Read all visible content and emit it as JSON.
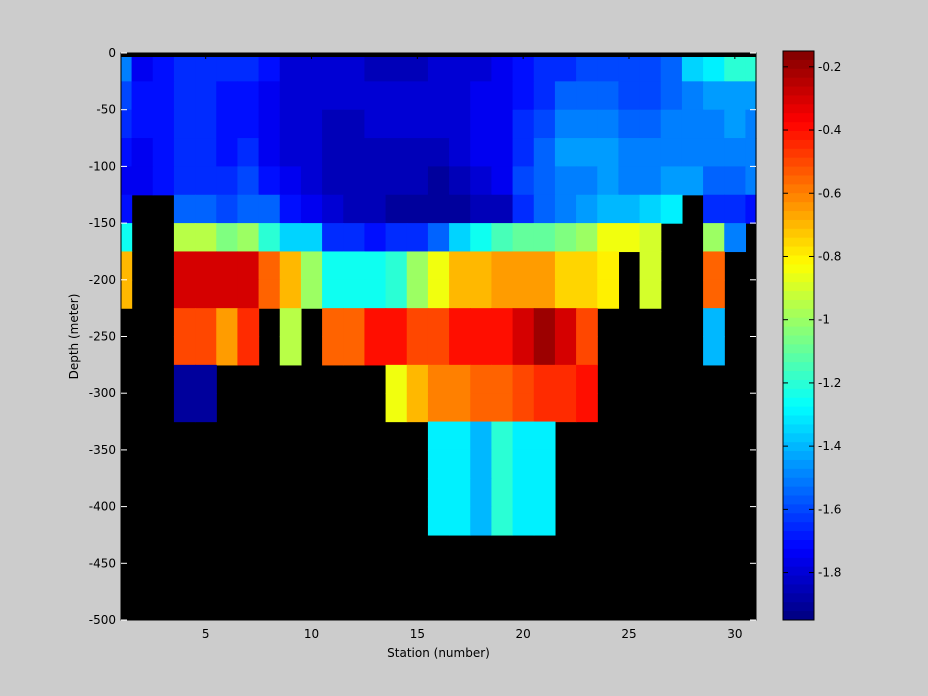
{
  "chart_data": {
    "type": "heatmap",
    "xlabel": "Station (number)",
    "ylabel": "Depth (meter)",
    "xlim": [
      1,
      31
    ],
    "ylim": [
      -500,
      0
    ],
    "xticks": [
      5,
      10,
      15,
      20,
      25,
      30
    ],
    "yticks": [
      0,
      -50,
      -100,
      -150,
      -200,
      -250,
      -300,
      -350,
      -400,
      -450,
      -500
    ],
    "colorbar": {
      "colormap": "jet",
      "clim": [
        -1.95,
        -0.15
      ],
      "ticks": [
        -0.2,
        -0.4,
        -0.6,
        -0.8,
        -1,
        -1.2,
        -1.4,
        -1.6,
        -1.8
      ]
    },
    "nan_color": "#000000",
    "background": "#cccccc",
    "depth_rows": [
      0,
      -25,
      -50,
      -75,
      -100,
      -125,
      -150,
      -175,
      -200,
      -225,
      -250,
      -275,
      -300,
      -325,
      -350,
      -375,
      -400
    ],
    "stations": [
      1,
      2,
      3,
      4,
      5,
      6,
      7,
      8,
      9,
      10,
      11,
      12,
      13,
      14,
      15,
      16,
      17,
      18,
      19,
      20,
      21,
      22,
      23,
      24,
      25,
      26,
      27,
      28,
      29,
      30,
      31
    ],
    "values": [
      [
        -1.5,
        -1.75,
        -1.7,
        -1.65,
        -1.65,
        -1.65,
        -1.65,
        -1.7,
        -1.8,
        -1.8,
        -1.8,
        -1.8,
        -1.85,
        -1.85,
        -1.85,
        -1.8,
        -1.8,
        -1.8,
        -1.75,
        -1.7,
        -1.65,
        -1.65,
        -1.6,
        -1.6,
        -1.6,
        -1.6,
        -1.55,
        -1.35,
        -1.3,
        -1.2,
        -1.2
      ],
      [
        -1.6,
        -1.7,
        -1.7,
        -1.65,
        -1.65,
        -1.7,
        -1.7,
        -1.75,
        -1.8,
        -1.8,
        -1.8,
        -1.8,
        -1.8,
        -1.8,
        -1.8,
        -1.8,
        -1.8,
        -1.75,
        -1.75,
        -1.7,
        -1.65,
        -1.55,
        -1.55,
        -1.55,
        -1.6,
        -1.6,
        -1.55,
        -1.5,
        -1.45,
        -1.45,
        -1.45
      ],
      [
        -1.65,
        -1.7,
        -1.7,
        -1.65,
        -1.65,
        -1.7,
        -1.7,
        -1.75,
        -1.8,
        -1.8,
        -1.85,
        -1.85,
        -1.8,
        -1.8,
        -1.8,
        -1.8,
        -1.8,
        -1.75,
        -1.75,
        -1.65,
        -1.6,
        -1.5,
        -1.5,
        -1.5,
        -1.55,
        -1.55,
        -1.5,
        -1.5,
        -1.5,
        -1.45,
        -1.5
      ],
      [
        -1.7,
        -1.75,
        -1.7,
        -1.65,
        -1.65,
        -1.7,
        -1.65,
        -1.75,
        -1.8,
        -1.8,
        -1.85,
        -1.85,
        -1.85,
        -1.85,
        -1.85,
        -1.85,
        -1.8,
        -1.75,
        -1.75,
        -1.65,
        -1.55,
        -1.45,
        -1.45,
        -1.45,
        -1.5,
        -1.5,
        -1.5,
        -1.5,
        -1.5,
        -1.5,
        -1.5
      ],
      [
        -1.75,
        -1.75,
        -1.7,
        -1.65,
        -1.65,
        -1.65,
        -1.6,
        -1.7,
        -1.75,
        -1.8,
        -1.85,
        -1.85,
        -1.85,
        -1.85,
        -1.85,
        -1.9,
        -1.85,
        -1.8,
        -1.75,
        -1.6,
        -1.55,
        -1.5,
        -1.5,
        -1.45,
        -1.5,
        -1.5,
        -1.45,
        -1.45,
        -1.55,
        -1.55,
        -1.5
      ],
      [
        -1.7,
        null,
        null,
        -1.55,
        -1.55,
        -1.6,
        -1.55,
        -1.55,
        -1.7,
        -1.75,
        -1.8,
        -1.85,
        -1.85,
        -1.9,
        -1.9,
        -1.9,
        -1.9,
        -1.85,
        -1.85,
        -1.65,
        -1.55,
        -1.5,
        -1.45,
        -1.4,
        -1.4,
        -1.35,
        -1.3,
        null,
        -1.65,
        -1.65,
        -1.7
      ],
      [
        -1.25,
        null,
        null,
        -0.95,
        -0.95,
        -1.05,
        -1.0,
        -1.2,
        -1.35,
        -1.35,
        -1.65,
        -1.65,
        -1.7,
        -1.65,
        -1.65,
        -1.55,
        -1.35,
        -1.25,
        -1.15,
        -1.1,
        -1.1,
        -1.05,
        -1.0,
        -0.85,
        -0.85,
        -0.9,
        null,
        null,
        -1.0,
        -1.5,
        null
      ],
      [
        -0.7,
        null,
        null,
        -0.3,
        -0.3,
        -0.3,
        -0.3,
        -0.55,
        -0.7,
        -1.0,
        -1.25,
        -1.25,
        -1.25,
        -1.2,
        -1.0,
        -0.85,
        -0.7,
        -0.7,
        -0.65,
        -0.65,
        -0.65,
        -0.75,
        -0.75,
        -0.8,
        null,
        -0.9,
        null,
        null,
        -0.55,
        null,
        null
      ],
      [
        -0.7,
        null,
        null,
        -0.3,
        -0.3,
        -0.3,
        -0.3,
        -0.55,
        -0.7,
        -1.0,
        -1.25,
        -1.25,
        -1.25,
        -1.2,
        -1.0,
        -0.85,
        -0.7,
        -0.7,
        -0.65,
        -0.65,
        -0.65,
        -0.75,
        -0.75,
        -0.8,
        null,
        -0.9,
        null,
        null,
        -0.55,
        null,
        null
      ],
      [
        null,
        null,
        null,
        -0.5,
        -0.5,
        -0.65,
        -0.45,
        null,
        -0.95,
        null,
        -0.55,
        -0.55,
        -0.4,
        -0.4,
        -0.5,
        -0.5,
        -0.4,
        -0.4,
        -0.4,
        -0.3,
        -0.2,
        -0.3,
        -0.5,
        null,
        null,
        null,
        null,
        null,
        -1.4,
        null,
        null
      ],
      [
        null,
        null,
        null,
        -0.5,
        -0.5,
        -0.65,
        -0.45,
        null,
        -0.95,
        null,
        -0.55,
        -0.55,
        -0.4,
        -0.4,
        -0.5,
        -0.5,
        -0.4,
        -0.4,
        -0.4,
        -0.3,
        -0.2,
        -0.3,
        -0.5,
        null,
        null,
        null,
        null,
        null,
        -1.4,
        null,
        null
      ],
      [
        null,
        null,
        null,
        -1.9,
        -1.9,
        null,
        null,
        null,
        null,
        null,
        null,
        null,
        null,
        -0.85,
        -0.7,
        -0.6,
        -0.6,
        -0.55,
        -0.55,
        -0.5,
        -0.45,
        -0.45,
        -0.4,
        null,
        null,
        null,
        null,
        null,
        null,
        null,
        null
      ],
      [
        null,
        null,
        null,
        -1.9,
        -1.9,
        null,
        null,
        null,
        null,
        null,
        null,
        null,
        null,
        -0.85,
        -0.7,
        -0.6,
        -0.6,
        -0.55,
        -0.55,
        -0.5,
        -0.45,
        -0.45,
        -0.4,
        null,
        null,
        null,
        null,
        null,
        null,
        null,
        null
      ],
      [
        null,
        null,
        null,
        null,
        null,
        null,
        null,
        null,
        null,
        null,
        null,
        null,
        null,
        null,
        null,
        -1.3,
        -1.3,
        -1.4,
        -1.2,
        -1.3,
        -1.3,
        null,
        null,
        null,
        null,
        null,
        null,
        null,
        null,
        null,
        null
      ],
      [
        null,
        null,
        null,
        null,
        null,
        null,
        null,
        null,
        null,
        null,
        null,
        null,
        null,
        null,
        null,
        -1.3,
        -1.3,
        -1.4,
        -1.2,
        -1.3,
        -1.3,
        null,
        null,
        null,
        null,
        null,
        null,
        null,
        null,
        null,
        null
      ],
      [
        null,
        null,
        null,
        null,
        null,
        null,
        null,
        null,
        null,
        null,
        null,
        null,
        null,
        null,
        null,
        -1.3,
        -1.3,
        -1.4,
        -1.2,
        -1.3,
        -1.3,
        null,
        null,
        null,
        null,
        null,
        null,
        null,
        null,
        null,
        null
      ],
      [
        null,
        null,
        null,
        null,
        null,
        null,
        null,
        null,
        null,
        null,
        null,
        null,
        null,
        null,
        null,
        -1.3,
        -1.3,
        -1.4,
        -1.2,
        -1.3,
        -1.3,
        null,
        null,
        null,
        null,
        null,
        null,
        null,
        null,
        null,
        null
      ]
    ]
  }
}
